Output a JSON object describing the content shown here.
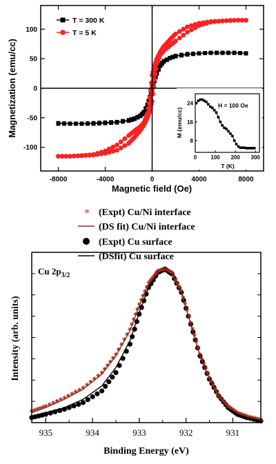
{
  "chart_data": [
    {
      "type": "scatter",
      "xlabel": "Magnetic field (Oe)",
      "ylabel": "Magnetization (emu/cc)",
      "xlim": [
        -9500,
        9500
      ],
      "ylim": [
        -140,
        140
      ],
      "x_ticks": [
        -8000,
        -4000,
        0,
        4000,
        8000
      ],
      "x_tick_labels": [
        "-8000",
        "-4000",
        "0",
        "4000",
        "8000"
      ],
      "y_ticks": [
        -100,
        -50,
        0,
        50,
        100
      ],
      "y_tick_labels": [
        "-100",
        "-50",
        "0",
        "50",
        "100"
      ],
      "grid": false,
      "legend_position": "top-left",
      "series": [
        {
          "name": "T = 300 K",
          "color": "#000000",
          "marker": "square",
          "x": [
            -8000,
            -7000,
            -6000,
            -5000,
            -4000,
            -3000,
            -2000,
            -1500,
            -1000,
            -700,
            -400,
            -200,
            0,
            200,
            400,
            700,
            1000,
            1500,
            2000,
            3000,
            4000,
            5000,
            6000,
            7000,
            8000
          ],
          "y_up": [
            -60,
            -60,
            -60,
            -59,
            -58,
            -57,
            -54,
            -51,
            -46,
            -40,
            -28,
            -15,
            -3,
            12,
            25,
            38,
            45,
            51,
            55,
            58,
            59,
            60,
            60,
            60,
            59
          ],
          "y_down": [
            -59,
            -60,
            -60,
            -60,
            -59,
            -58,
            -55,
            -52,
            -47,
            -41,
            -30,
            -16,
            3,
            16,
            29,
            40,
            46,
            51,
            54,
            57,
            59,
            60,
            60,
            60,
            59
          ]
        },
        {
          "name": "T = 5 K",
          "color": "#ff2020",
          "marker": "circle",
          "x": [
            -8000,
            -7000,
            -6000,
            -5000,
            -4000,
            -3000,
            -2000,
            -1500,
            -1000,
            -700,
            -400,
            -200,
            0,
            200,
            400,
            700,
            1000,
            1500,
            2000,
            3000,
            4000,
            5000,
            6000,
            7000,
            8000
          ],
          "y_up": [
            -115,
            -115,
            -114,
            -113,
            -110,
            -105,
            -93,
            -83,
            -71,
            -62,
            -50,
            -38,
            -22,
            15,
            42,
            57,
            64,
            72,
            80,
            95,
            106,
            112,
            114,
            115,
            115
          ],
          "y_down": [
            -115,
            -115,
            -114,
            -112,
            -106,
            -96,
            -80,
            -72,
            -65,
            -58,
            -43,
            -16,
            22,
            38,
            50,
            62,
            71,
            82,
            92,
            104,
            110,
            113,
            114,
            115,
            115
          ]
        }
      ],
      "inset": {
        "type": "scatter",
        "xlabel": "T (K)",
        "ylabel": "M (emu/cc)",
        "annotation": "H = 100 Oe",
        "xlim": [
          0,
          320
        ],
        "ylim": [
          3,
          28
        ],
        "x_ticks": [
          0,
          100,
          200,
          300
        ],
        "x_tick_labels": [
          "0",
          "100",
          "200",
          "300"
        ],
        "y_ticks": [
          8,
          16,
          24
        ],
        "y_tick_labels": [
          "8",
          "16",
          "24"
        ],
        "series": [
          {
            "color": "#000000",
            "marker": "square",
            "x": [
              5,
              15,
              25,
              35,
              45,
              55,
              65,
              75,
              85,
              95,
              105,
              115,
              125,
              135,
              145,
              155,
              165,
              175,
              185,
              195,
              205,
              215,
              225,
              235,
              245,
              255,
              265,
              275,
              285,
              295
            ],
            "y": [
              24,
              25,
              25.5,
              25.5,
              25,
              24.5,
              23.5,
              22.5,
              22,
              21,
              20,
              18,
              16,
              14.5,
              13.5,
              13,
              12,
              11,
              10,
              8,
              6.5,
              5.5,
              5,
              5,
              5,
              4.8,
              4.8,
              4.8,
              4.8,
              4.8
            ]
          }
        ]
      }
    },
    {
      "type": "line",
      "xlabel": "Binding Energy (eV)",
      "ylabel": "Intensity (arb. units)",
      "annotation": "Cu 2p",
      "annotation_subscript": "3/2",
      "xlim": [
        935.3,
        930.4
      ],
      "ylim": [
        0.11,
        1.13
      ],
      "x_reversed": true,
      "x_ticks": [
        935,
        934,
        933,
        932,
        931
      ],
      "x_tick_labels": [
        "935",
        "934",
        "933",
        "932",
        "931"
      ],
      "y_tick_labels": [],
      "grid": false,
      "legend_position": "top (above plot)",
      "series": [
        {
          "name": "(Expt) Cu/Ni interface",
          "style": "star-markers",
          "color": "#9c2a1c",
          "x": [
            935.3,
            935.0,
            934.6,
            934.2,
            933.8,
            933.5,
            933.2,
            933.0,
            932.8,
            932.6,
            932.45,
            932.3,
            932.1,
            931.9,
            931.7,
            931.5,
            931.3,
            931.1,
            930.9,
            930.7,
            930.4
          ],
          "y": [
            0.18,
            0.21,
            0.26,
            0.32,
            0.41,
            0.52,
            0.67,
            0.82,
            0.95,
            1.02,
            1.03,
            1.01,
            0.9,
            0.71,
            0.52,
            0.38,
            0.27,
            0.21,
            0.17,
            0.15,
            0.13
          ]
        },
        {
          "name": "(DS fit) Cu/Ni interface",
          "style": "line",
          "color": "#9c2a1c",
          "x": [
            935.3,
            935.0,
            934.6,
            934.2,
            933.8,
            933.5,
            933.2,
            933.0,
            932.8,
            932.6,
            932.45,
            932.3,
            932.1,
            931.9,
            931.7,
            931.5,
            931.3,
            931.1,
            930.9,
            930.7,
            930.4
          ],
          "y": [
            0.17,
            0.2,
            0.25,
            0.31,
            0.4,
            0.51,
            0.66,
            0.81,
            0.94,
            1.01,
            1.03,
            1.0,
            0.89,
            0.7,
            0.51,
            0.37,
            0.27,
            0.2,
            0.17,
            0.15,
            0.13
          ]
        },
        {
          "name": "(Expt) Cu surface",
          "style": "dot-markers",
          "color": "#000000",
          "x": [
            935.3,
            935.0,
            934.6,
            934.2,
            933.8,
            933.5,
            933.2,
            933.0,
            932.8,
            932.6,
            932.45,
            932.3,
            932.1,
            931.9,
            931.7,
            931.5,
            931.3,
            931.1,
            930.9,
            930.7,
            930.4
          ],
          "y": [
            0.14,
            0.16,
            0.19,
            0.23,
            0.3,
            0.41,
            0.58,
            0.76,
            0.92,
            1.01,
            1.03,
            1.0,
            0.89,
            0.7,
            0.51,
            0.37,
            0.27,
            0.2,
            0.16,
            0.14,
            0.12
          ]
        },
        {
          "name": "(DSfit) Cu surface",
          "style": "line",
          "color": "#000000",
          "x": [
            935.3,
            935.0,
            934.6,
            934.2,
            933.8,
            933.5,
            933.2,
            933.0,
            932.8,
            932.6,
            932.45,
            932.3,
            932.1,
            931.9,
            931.7,
            931.5,
            931.3,
            931.1,
            930.9,
            930.7,
            930.4
          ],
          "y": [
            0.15,
            0.17,
            0.2,
            0.25,
            0.33,
            0.44,
            0.6,
            0.77,
            0.92,
            1.01,
            1.03,
            1.0,
            0.89,
            0.7,
            0.51,
            0.37,
            0.27,
            0.2,
            0.16,
            0.14,
            0.12
          ]
        }
      ]
    }
  ]
}
